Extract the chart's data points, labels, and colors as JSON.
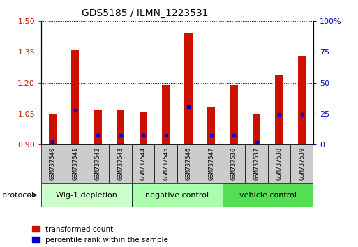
{
  "title": "GDS5185 / ILMN_1223531",
  "samples": [
    "GSM737540",
    "GSM737541",
    "GSM737542",
    "GSM737543",
    "GSM737544",
    "GSM737545",
    "GSM737546",
    "GSM737547",
    "GSM737536",
    "GSM737537",
    "GSM737538",
    "GSM737539"
  ],
  "red_values": [
    1.05,
    1.36,
    1.07,
    1.07,
    1.06,
    1.19,
    1.44,
    1.08,
    1.19,
    1.05,
    1.24,
    1.33
  ],
  "blue_values": [
    0.915,
    1.065,
    0.945,
    0.945,
    0.945,
    0.945,
    1.085,
    0.945,
    0.945,
    0.91,
    1.045,
    1.045
  ],
  "y_min": 0.9,
  "y_max": 1.5,
  "y_ticks": [
    0.9,
    1.05,
    1.2,
    1.35,
    1.5
  ],
  "y2_ticks": [
    0,
    25,
    50,
    75,
    100
  ],
  "y2_labels": [
    "0",
    "25",
    "50",
    "75",
    "100%"
  ],
  "groups": [
    {
      "label": "Wig-1 depletion",
      "start": 0,
      "end": 3,
      "color": "#ccffcc"
    },
    {
      "label": "negative control",
      "start": 4,
      "end": 7,
      "color": "#aaffaa"
    },
    {
      "label": "vehicle control",
      "start": 8,
      "end": 11,
      "color": "#55dd55"
    }
  ],
  "bar_color": "#cc1100",
  "blue_color": "#0000cc",
  "base": 0.9,
  "tick_label_color_left": "#cc1100",
  "tick_label_color_right": "#0000cc"
}
